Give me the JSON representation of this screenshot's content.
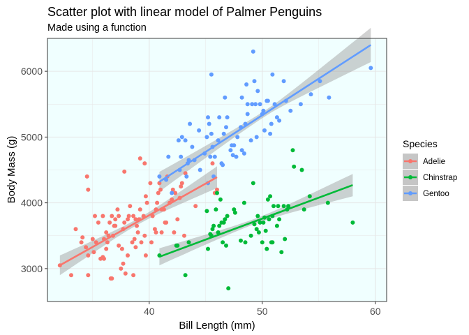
{
  "chart_data": {
    "type": "scatter",
    "title": "Scatter plot with linear model of Palmer Penguins",
    "subtitle": "Made using a function",
    "xlabel": "Bill Length (mm)",
    "ylabel": "Body Mass (g)",
    "xlim": [
      31,
      61
    ],
    "ylim": [
      2500,
      6500
    ],
    "x_ticks": [
      40,
      50,
      60
    ],
    "y_ticks": [
      3000,
      4000,
      5000,
      6000
    ],
    "grid": true,
    "panel_background": "#f0ffff",
    "legend": {
      "title": "Species",
      "position": "right"
    },
    "series": [
      {
        "name": "Adelie",
        "color": "#f8766d",
        "fit": {
          "x": [
            32.1,
            46.0
          ],
          "y": [
            3050,
            4390
          ],
          "band_half_width_ends": [
            150,
            165
          ],
          "band_half_width_center": 45
        },
        "points": [
          [
            32.1,
            3050
          ],
          [
            33.1,
            2900
          ],
          [
            33.5,
            3600
          ],
          [
            34.0,
            3400
          ],
          [
            34.1,
            3475
          ],
          [
            34.4,
            3325
          ],
          [
            34.5,
            4400
          ],
          [
            34.6,
            2900
          ],
          [
            34.6,
            3200
          ],
          [
            34.6,
            4200
          ],
          [
            35.0,
            3450
          ],
          [
            35.1,
            3250
          ],
          [
            35.2,
            3800
          ],
          [
            35.3,
            3400
          ],
          [
            35.5,
            3700
          ],
          [
            35.7,
            3150
          ],
          [
            35.9,
            3800
          ],
          [
            35.9,
            3175
          ],
          [
            36.0,
            3450
          ],
          [
            36.0,
            3150
          ],
          [
            36.2,
            3300
          ],
          [
            36.2,
            3550
          ],
          [
            36.3,
            3400
          ],
          [
            36.4,
            3500
          ],
          [
            36.5,
            3700
          ],
          [
            36.6,
            2850
          ],
          [
            36.7,
            2850
          ],
          [
            36.7,
            3800
          ],
          [
            36.8,
            3500
          ],
          [
            36.9,
            3650
          ],
          [
            37.0,
            3750
          ],
          [
            37.0,
            3650
          ],
          [
            37.2,
            3900
          ],
          [
            37.3,
            3350
          ],
          [
            37.3,
            3800
          ],
          [
            37.5,
            3000
          ],
          [
            37.6,
            3300
          ],
          [
            37.7,
            3600
          ],
          [
            37.7,
            3075
          ],
          [
            37.8,
            3700
          ],
          [
            37.8,
            4475
          ],
          [
            37.9,
            2925
          ],
          [
            38.1,
            3750
          ],
          [
            38.1,
            3200
          ],
          [
            38.2,
            3800
          ],
          [
            38.3,
            3950
          ],
          [
            38.5,
            3400
          ],
          [
            38.6,
            3800
          ],
          [
            38.6,
            2900
          ],
          [
            38.7,
            3450
          ],
          [
            38.8,
            3750
          ],
          [
            38.8,
            3325
          ],
          [
            38.9,
            3650
          ],
          [
            39.0,
            3550
          ],
          [
            39.1,
            3750
          ],
          [
            39.2,
            3900
          ],
          [
            39.2,
            4675
          ],
          [
            39.3,
            3400
          ],
          [
            39.5,
            3800
          ],
          [
            39.6,
            3500
          ],
          [
            39.6,
            4600
          ],
          [
            39.7,
            3200
          ],
          [
            39.7,
            4100
          ],
          [
            39.8,
            4000
          ],
          [
            40.1,
            4300
          ],
          [
            40.2,
            3400
          ],
          [
            40.3,
            3800
          ],
          [
            40.5,
            3600
          ],
          [
            40.6,
            3550
          ],
          [
            40.6,
            3900
          ],
          [
            40.7,
            4000
          ],
          [
            40.8,
            4150
          ],
          [
            40.9,
            4300
          ],
          [
            41.0,
            4200
          ],
          [
            41.1,
            3900
          ],
          [
            41.1,
            3550
          ],
          [
            41.3,
            3900
          ],
          [
            41.4,
            3700
          ],
          [
            41.5,
            3700
          ],
          [
            41.6,
            4400
          ],
          [
            41.8,
            4000
          ],
          [
            42.0,
            4050
          ],
          [
            42.1,
            4200
          ],
          [
            42.2,
            3550
          ],
          [
            42.3,
            4150
          ],
          [
            42.5,
            3750
          ],
          [
            42.7,
            4075
          ],
          [
            42.8,
            4250
          ],
          [
            42.9,
            4300
          ],
          [
            43.1,
            3500
          ],
          [
            43.2,
            4450
          ],
          [
            44.1,
            3950
          ],
          [
            45.6,
            4600
          ],
          [
            45.8,
            4150
          ],
          [
            46.0,
            4200
          ]
        ]
      },
      {
        "name": "Chinstrap",
        "color": "#00ba38",
        "fit": {
          "x": [
            40.9,
            58.0
          ],
          "y": [
            3180,
            4270
          ],
          "band_half_width_ends": [
            130,
            170
          ],
          "band_half_width_center": 40
        },
        "points": [
          [
            40.9,
            3200
          ],
          [
            42.4,
            3350
          ],
          [
            42.5,
            3350
          ],
          [
            43.2,
            2900
          ],
          [
            43.5,
            3400
          ],
          [
            45.2,
            3300
          ],
          [
            45.4,
            3525
          ],
          [
            45.5,
            3500
          ],
          [
            45.6,
            3600
          ],
          [
            45.7,
            3650
          ],
          [
            45.9,
            3900
          ],
          [
            46.0,
            4150
          ],
          [
            46.1,
            3550
          ],
          [
            46.2,
            3650
          ],
          [
            46.4,
            3700
          ],
          [
            46.5,
            3400
          ],
          [
            46.6,
            3700
          ],
          [
            46.7,
            3750
          ],
          [
            46.8,
            3350
          ],
          [
            46.9,
            3800
          ],
          [
            47.0,
            2700
          ],
          [
            47.5,
            3900
          ],
          [
            48.1,
            3425
          ],
          [
            48.5,
            3400
          ],
          [
            49.0,
            3500
          ],
          [
            49.2,
            4300
          ],
          [
            49.5,
            3600
          ],
          [
            49.7,
            3550
          ],
          [
            49.8,
            3700
          ],
          [
            50.0,
            3400
          ],
          [
            50.1,
            3700
          ],
          [
            50.2,
            3775
          ],
          [
            50.3,
            3575
          ],
          [
            50.4,
            3300
          ],
          [
            50.5,
            4050
          ],
          [
            50.6,
            3750
          ],
          [
            50.7,
            4100
          ],
          [
            50.8,
            3400
          ],
          [
            50.9,
            3400
          ],
          [
            51.0,
            3950
          ],
          [
            51.3,
            3650
          ],
          [
            51.4,
            3950
          ],
          [
            51.5,
            3750
          ],
          [
            51.7,
            3250
          ],
          [
            51.9,
            3950
          ],
          [
            52.0,
            3450
          ],
          [
            52.2,
            3900
          ],
          [
            52.7,
            4800
          ],
          [
            53.5,
            4500
          ],
          [
            54.2,
            4100
          ],
          [
            55.8,
            4000
          ],
          [
            58.0,
            3700
          ],
          [
            52.8,
            4550
          ],
          [
            47.6,
            3850
          ],
          [
            49.3,
            3675
          ],
          [
            48.4,
            4000
          ],
          [
            45.1,
            3875
          ],
          [
            46.3,
            4050
          ],
          [
            49.6,
            3800
          ],
          [
            50.9,
            3800
          ],
          [
            52.3,
            3950
          ],
          [
            53.7,
            3900
          ]
        ]
      },
      {
        "name": "Gentoo",
        "color": "#619cff",
        "fit": {
          "x": [
            40.9,
            59.6
          ],
          "y": [
            4320,
            6400
          ],
          "band_half_width_ends": [
            150,
            260
          ],
          "band_half_width_center": 45
        },
        "points": [
          [
            40.9,
            4400
          ],
          [
            41.5,
            4350
          ],
          [
            41.7,
            4700
          ],
          [
            42.0,
            4150
          ],
          [
            42.6,
            4950
          ],
          [
            42.7,
            4500
          ],
          [
            42.8,
            4700
          ],
          [
            42.9,
            5000
          ],
          [
            43.3,
            4400
          ],
          [
            43.4,
            4600
          ],
          [
            43.5,
            4650
          ],
          [
            43.6,
            5200
          ],
          [
            43.8,
            4850
          ],
          [
            44.0,
            4650
          ],
          [
            44.4,
            5100
          ],
          [
            44.5,
            4500
          ],
          [
            44.9,
            4750
          ],
          [
            45.1,
            5000
          ],
          [
            45.2,
            4300
          ],
          [
            45.3,
            5200
          ],
          [
            45.4,
            4700
          ],
          [
            45.5,
            5050
          ],
          [
            45.5,
            5950
          ],
          [
            45.7,
            4400
          ],
          [
            45.8,
            4700
          ],
          [
            46.1,
            4950
          ],
          [
            46.2,
            5300
          ],
          [
            46.4,
            4600
          ],
          [
            46.5,
            4575
          ],
          [
            46.6,
            5050
          ],
          [
            46.8,
            5150
          ],
          [
            47.2,
            4800
          ],
          [
            47.3,
            4875
          ],
          [
            47.5,
            4875
          ],
          [
            47.7,
            4700
          ],
          [
            48.1,
            5150
          ],
          [
            48.2,
            4800
          ],
          [
            48.4,
            4750
          ],
          [
            48.5,
            5200
          ],
          [
            48.6,
            5800
          ],
          [
            48.7,
            5350
          ],
          [
            49.0,
            4950
          ],
          [
            49.1,
            5500
          ],
          [
            49.2,
            6300
          ],
          [
            49.4,
            5500
          ],
          [
            49.5,
            5000
          ],
          [
            49.6,
            5700
          ],
          [
            49.8,
            5500
          ],
          [
            50.0,
            5350
          ],
          [
            50.1,
            5400
          ],
          [
            50.2,
            5100
          ],
          [
            50.4,
            5550
          ],
          [
            50.5,
            5550
          ],
          [
            50.7,
            5050
          ],
          [
            50.8,
            5200
          ],
          [
            51.1,
            5500
          ],
          [
            51.3,
            5300
          ],
          [
            51.5,
            5250
          ],
          [
            52.1,
            5550
          ],
          [
            52.5,
            5400
          ],
          [
            53.4,
            5500
          ],
          [
            54.3,
            5650
          ],
          [
            55.1,
            5850
          ],
          [
            55.9,
            5600
          ],
          [
            59.6,
            6050
          ],
          [
            45.2,
            5300
          ],
          [
            47.4,
            4725
          ],
          [
            48.2,
            5600
          ],
          [
            49.3,
            5850
          ],
          [
            46.9,
            5300
          ],
          [
            50.9,
            5950
          ],
          [
            51.9,
            5850
          ],
          [
            48.7,
            5500
          ],
          [
            46.7,
            5600
          ],
          [
            45.6,
            4850
          ],
          [
            47.8,
            5000
          ],
          [
            43.2,
            4950
          ]
        ]
      }
    ]
  }
}
